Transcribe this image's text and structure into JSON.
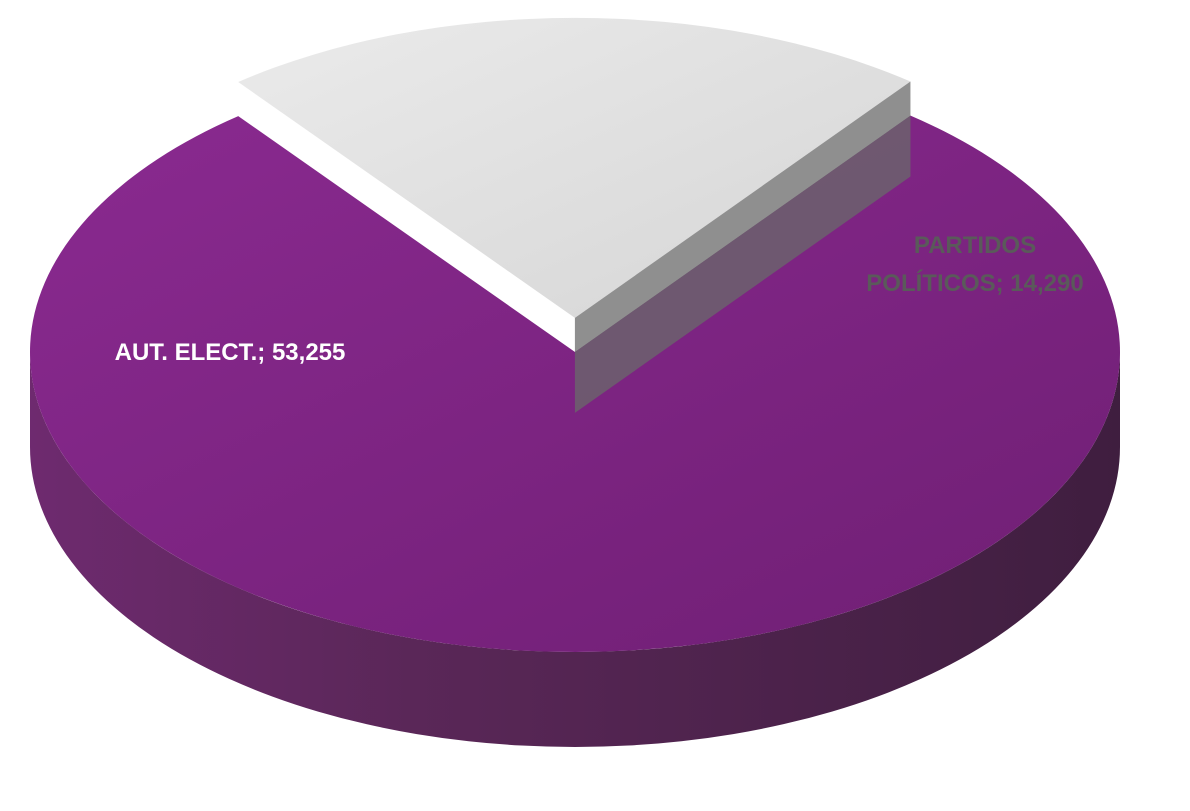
{
  "chart_data": {
    "type": "pie",
    "title": "",
    "style": "3d-exploded",
    "slices": [
      {
        "label": "AUT. ELECT.",
        "value": 53255,
        "display": "AUT. ELECT.; 53,255",
        "label_lines": [
          "AUT. ELECT.; 53,255"
        ],
        "color": "#7b2480",
        "label_color": "#ffffff",
        "exploded": false
      },
      {
        "label": "PARTIDOS POLÍTICOS",
        "value": 14290,
        "display": "PARTIDOS POLÍTICOS; 14,290",
        "label_lines": [
          "PARTIDOS",
          "POLÍTICOS; 14,290"
        ],
        "color": "#d6d6d6",
        "label_color": "#5a5a5a",
        "exploded": true
      }
    ],
    "legend": "none"
  }
}
